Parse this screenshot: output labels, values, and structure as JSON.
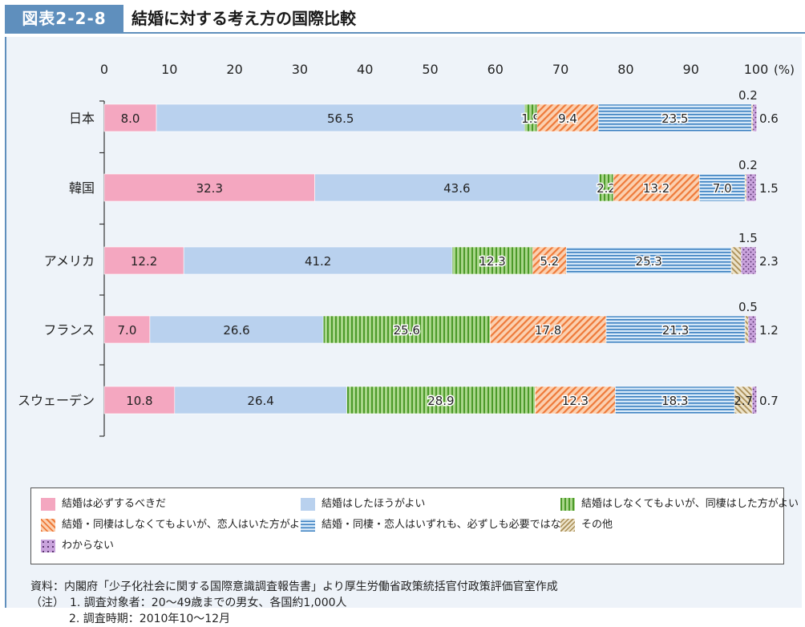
{
  "header": {
    "figure_label": "図表2-2-8",
    "title": "結婚に対する考え方の国際比較"
  },
  "chart_data": {
    "type": "bar",
    "orientation": "horizontal",
    "stacked": true,
    "x_unit_label": "(%)",
    "xlim": [
      0,
      100
    ],
    "x_ticks": [
      "0",
      "10",
      "20",
      "30",
      "40",
      "50",
      "60",
      "70",
      "80",
      "90",
      "100"
    ],
    "categories": [
      "日本",
      "韓国",
      "アメリカ",
      "フランス",
      "スウェーデン"
    ],
    "series": [
      {
        "name": "結婚は必ずするべきだ",
        "values": [
          8.0,
          32.3,
          12.2,
          7.0,
          10.8
        ],
        "labels": [
          "8.0",
          "32.3",
          "12.2",
          "7.0",
          "10.8"
        ],
        "color": "#f4a7c0"
      },
      {
        "name": "結婚はしたほうがよい",
        "values": [
          56.5,
          43.6,
          41.2,
          26.6,
          26.4
        ],
        "labels": [
          "56.5",
          "43.6",
          "41.2",
          "26.6",
          "26.4"
        ],
        "color": "#b9d1ee"
      },
      {
        "name": "結婚はしなくてもよいが、同棲はした方がよい",
        "values": [
          1.9,
          2.2,
          12.3,
          25.6,
          28.9
        ],
        "labels": [
          "1.9",
          "2.2",
          "12.3",
          "25.6",
          "28.9"
        ],
        "color": "#7fbf5a"
      },
      {
        "name": "結婚・同棲はしなくてもよいが、恋人はいた方がよい",
        "values": [
          9.4,
          13.2,
          5.2,
          17.8,
          12.3
        ],
        "labels": [
          "9.4",
          "13.2",
          "5.2",
          "17.8",
          "12.3"
        ],
        "color": "#f08a4b"
      },
      {
        "name": "結婚・同棲・恋人はいずれも、必ずしも必要ではない",
        "values": [
          23.5,
          7.0,
          25.3,
          21.3,
          18.3
        ],
        "labels": [
          "23.5",
          "7.0",
          "25.3",
          "21.3",
          "18.3"
        ],
        "color": "#5b9ad5"
      },
      {
        "name": "その他",
        "values": [
          0.2,
          0.2,
          1.5,
          0.5,
          2.7
        ],
        "labels": [
          "0.2",
          "0.2",
          "1.5",
          "0.5",
          "2.7"
        ],
        "color": "#c8b48a"
      },
      {
        "name": "わからない",
        "values": [
          0.6,
          1.5,
          2.3,
          1.2,
          0.7
        ],
        "labels": [
          "0.6",
          "1.5",
          "2.3",
          "1.2",
          "0.7"
        ],
        "color": "#b07cc6"
      }
    ],
    "legend_placement": "bottom"
  },
  "notes": {
    "source": "資料：内閣府「少子化社会に関する国際意識調査報告書」より厚生労働省政策統括官付政策評価官室作成",
    "note1": "（注）　1. 調査対象者：20～49歳までの男女、各国約1,000人",
    "note2": "2. 調査時期：2010年10～12月"
  }
}
